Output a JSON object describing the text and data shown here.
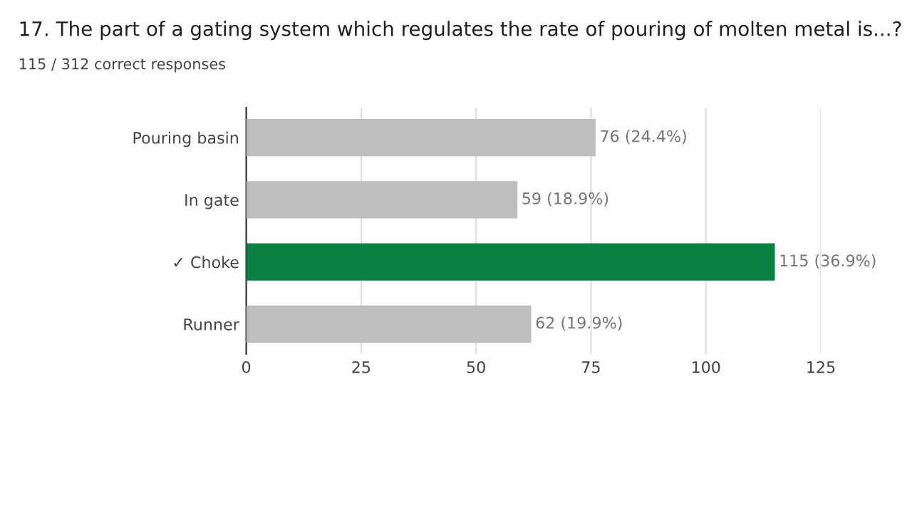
{
  "chart_data": {
    "type": "bar",
    "orientation": "horizontal",
    "title": "17. The part of a gating system which regulates the rate of pouring of molten metal is...?",
    "subtitle": "115 / 312 correct responses",
    "categories": [
      "Pouring basin",
      "In gate",
      "✓ Choke",
      "Runner"
    ],
    "values": [
      76,
      59,
      115,
      62
    ],
    "colors": [
      "#bdbdbd",
      "#bdbdbd",
      "#0b8043",
      "#bdbdbd"
    ],
    "value_labels": [
      "76 (24.4%)",
      "59 (18.9%)",
      "115 (36.9%)",
      "62 (19.9%)"
    ],
    "xlim": [
      0,
      125
    ],
    "xticks": [
      0,
      25,
      50,
      75,
      100,
      125
    ],
    "grid": "x",
    "legend": false
  }
}
